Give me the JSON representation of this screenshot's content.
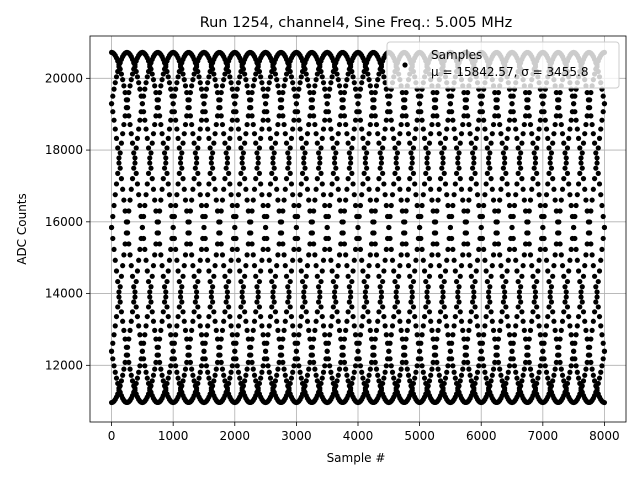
{
  "chart_data": {
    "type": "scatter",
    "title": "Run 1254, channel4, Sine Freq.: 5.005 MHz",
    "xlabel": "Sample #",
    "ylabel": "ADC Counts",
    "xlim": [
      -350,
      8350
    ],
    "ylim": [
      10420,
      21180
    ],
    "xticks": [
      0,
      1000,
      2000,
      3000,
      4000,
      5000,
      6000,
      7000,
      8000
    ],
    "yticks": [
      12000,
      14000,
      16000,
      18000,
      20000
    ],
    "grid": true,
    "legend": {
      "placement": "top-right",
      "entries": [
        {
          "label": "Samples",
          "stats": "μ = 15842.57, σ = 3455.8"
        }
      ]
    },
    "series": [
      {
        "label": "Samples",
        "color": "#000000",
        "marker": "circle",
        "model": {
          "x_range": [
            0,
            8000
          ],
          "mean": 15842.57,
          "amplitude": 4880,
          "visible_period_samples": 2000,
          "phases_deg": [
            0,
            45,
            90,
            135,
            180,
            225,
            270,
            315
          ]
        }
      }
    ]
  }
}
